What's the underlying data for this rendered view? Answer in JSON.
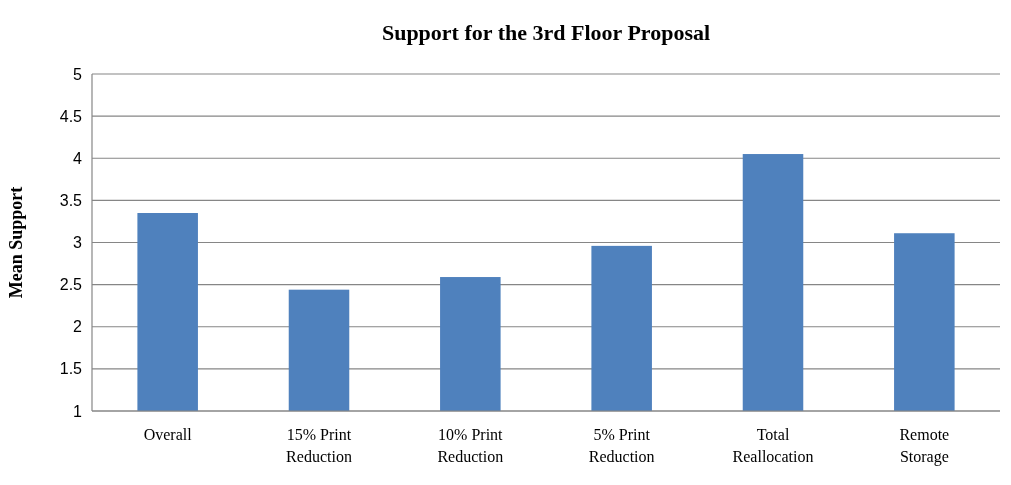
{
  "chart_data": {
    "type": "bar",
    "title": "Support for the 3rd Floor Proposal",
    "ylabel": "Mean Support",
    "categories": [
      "Overall",
      "15% Print Reduction",
      "10% Print Reduction",
      "5% Print Reduction",
      "Total Reallocation",
      "Remote Storage"
    ],
    "values": [
      3.35,
      2.44,
      2.59,
      2.96,
      4.05,
      3.11
    ],
    "color": "#4f81bd",
    "ylim": [
      1,
      5
    ],
    "yticks": [
      1,
      1.5,
      2,
      2.5,
      3,
      3.5,
      4,
      4.5,
      5
    ],
    "grid": "y"
  }
}
